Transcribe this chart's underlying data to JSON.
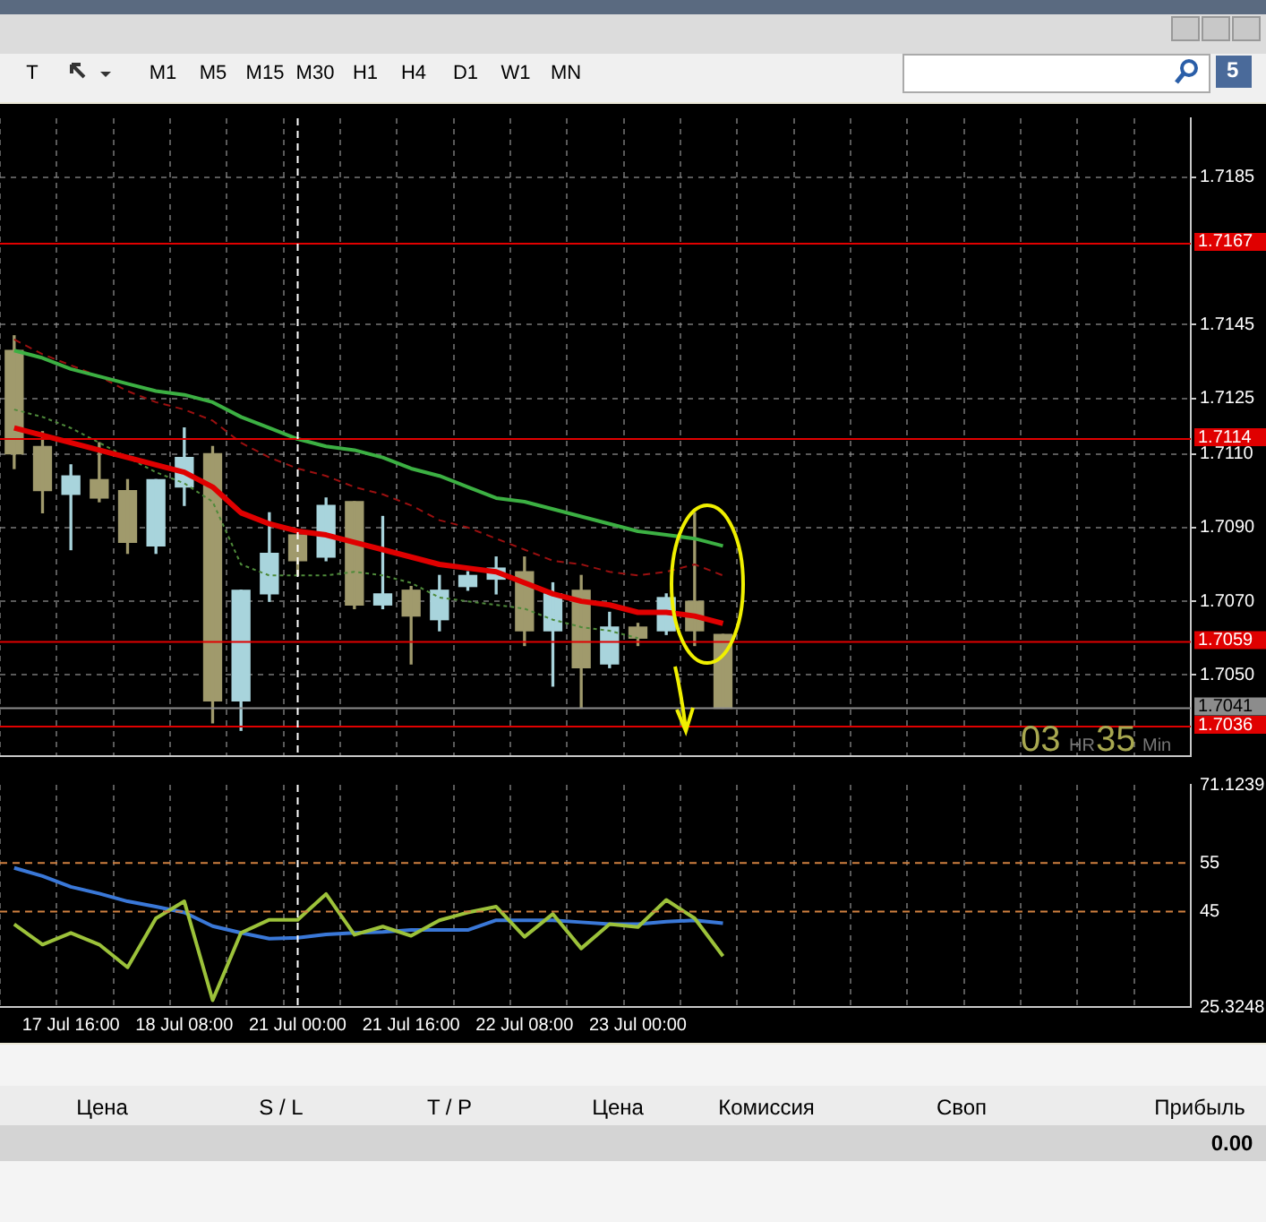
{
  "chart_data": [
    {
      "type": "candlestick",
      "categories": [
        null,
        null,
        "17 Jul 16:00",
        null,
        null,
        null,
        "18 Jul 08:00",
        null,
        null,
        null,
        "21 Jul 00:00",
        null,
        null,
        null,
        "21 Jul 16:00",
        null,
        null,
        null,
        "22 Jul 08:00",
        null,
        null,
        null,
        "23 Jul 00:00",
        null,
        null,
        null,
        null,
        null,
        null,
        null,
        null,
        null,
        null,
        null,
        null,
        null,
        null,
        null,
        null,
        null,
        null,
        null
      ],
      "ohlc": [
        [
          1.7138,
          1.7142,
          1.7106,
          1.711
        ],
        [
          1.7112,
          1.7116,
          1.7094,
          1.71
        ],
        [
          1.7099,
          1.7107,
          1.7084,
          1.7104
        ],
        [
          1.7103,
          1.7113,
          1.7097,
          1.7098
        ],
        [
          1.71,
          1.7103,
          1.7083,
          1.7086
        ],
        [
          1.7085,
          1.7103,
          1.7083,
          1.7103
        ],
        [
          1.7101,
          1.7117,
          1.7096,
          1.7109
        ],
        [
          1.711,
          1.7112,
          1.7037,
          1.7043
        ],
        [
          1.7043,
          1.7073,
          1.7035,
          1.7073
        ],
        [
          1.7072,
          1.7094,
          1.707,
          1.7083
        ],
        [
          1.7088,
          1.7088,
          1.7077,
          1.7081
        ],
        [
          1.7082,
          1.7098,
          1.7081,
          1.7096
        ],
        [
          1.7097,
          1.7097,
          1.7068,
          1.7069
        ],
        [
          1.7069,
          1.7093,
          1.7068,
          1.7072
        ],
        [
          1.7073,
          1.7074,
          1.7053,
          1.7066
        ],
        [
          1.7065,
          1.7077,
          1.7062,
          1.7073
        ],
        [
          1.7074,
          1.7078,
          1.7073,
          1.7077
        ],
        [
          1.7076,
          1.7082,
          1.7072,
          1.7079
        ],
        [
          1.7078,
          1.7082,
          1.7058,
          1.7062
        ],
        [
          1.7062,
          1.7075,
          1.7047,
          1.7072
        ],
        [
          1.7073,
          1.7077,
          1.7041,
          1.7052
        ],
        [
          1.7053,
          1.7067,
          1.7052,
          1.7063
        ],
        [
          1.7063,
          1.7064,
          1.7058,
          1.706
        ],
        [
          1.7062,
          1.7072,
          1.7061,
          1.7071
        ],
        [
          1.707,
          1.7094,
          1.7058,
          1.7062
        ],
        [
          1.7061,
          1.7061,
          1.7041,
          1.7041
        ],
        null,
        null,
        null,
        null,
        null,
        null,
        null,
        null,
        null,
        null,
        null,
        null,
        null,
        null,
        null,
        null
      ],
      "colors": [
        "#a09a6c",
        "#a09a6c",
        "#a8d4dc",
        "#a09a6c",
        "#a09a6c",
        "#a8d4dc",
        "#a8d4dc",
        "#a09a6c",
        "#a8d4dc",
        "#a8d4dc",
        "#a09a6c",
        "#a8d4dc",
        "#a09a6c",
        "#a8d4dc",
        "#a09a6c",
        "#a8d4dc",
        "#a8d4dc",
        "#a8d4dc",
        "#a09a6c",
        "#a8d4dc",
        "#a09a6c",
        "#a8d4dc",
        "#a09a6c",
        "#a8d4dc",
        "#a09a6c",
        "#a09a6c",
        null,
        null,
        null,
        null,
        null,
        null,
        null,
        null,
        null,
        null,
        null,
        null,
        null,
        null,
        null,
        null
      ],
      "series": [
        {
          "type": "line",
          "color": "#3cb043",
          "line_style": "solid",
          "values": [
            1.7138,
            1.7136,
            1.7133,
            1.7131,
            1.7129,
            1.7127,
            1.7126,
            1.7124,
            1.712,
            1.7117,
            1.7114,
            1.7112,
            1.7111,
            1.7109,
            1.7106,
            1.7104,
            1.7101,
            1.7098,
            1.7097,
            1.7095,
            1.7093,
            1.7091,
            1.7089,
            1.7088,
            1.7087,
            1.7085,
            null,
            null,
            null,
            null,
            null,
            null,
            null,
            null,
            null,
            null,
            null,
            null,
            null,
            null,
            null,
            null
          ]
        },
        {
          "type": "line",
          "color": "#e00000",
          "line_style": "solid",
          "values": [
            1.7117,
            1.7115,
            1.7113,
            1.7111,
            1.7109,
            1.7107,
            1.7105,
            1.7101,
            1.7094,
            1.7091,
            1.7089,
            1.7088,
            1.7086,
            1.7084,
            1.7082,
            1.708,
            1.7079,
            1.7078,
            1.7075,
            1.7072,
            1.707,
            1.7069,
            1.7067,
            1.7067,
            1.7066,
            1.7064,
            null,
            null,
            null,
            null,
            null,
            null,
            null,
            null,
            null,
            null,
            null,
            null,
            null,
            null,
            null,
            null
          ]
        },
        {
          "type": "line",
          "color": "#9a1010",
          "line_style": "dashed",
          "values": [
            1.7141,
            1.7137,
            1.7134,
            1.7131,
            1.7127,
            1.7124,
            1.7122,
            1.7119,
            1.7113,
            1.7109,
            1.7106,
            1.7104,
            1.7101,
            1.7099,
            1.7096,
            1.7092,
            1.709,
            1.7087,
            1.7084,
            1.7081,
            1.708,
            1.7078,
            1.7077,
            1.7078,
            1.708,
            1.7077,
            null,
            null,
            null,
            null,
            null,
            null,
            null,
            null,
            null,
            null,
            null,
            null,
            null,
            null,
            null,
            null
          ]
        },
        {
          "type": "line",
          "color": "#4e8a3a",
          "line_style": "dotted",
          "values": [
            1.7122,
            1.712,
            1.7117,
            1.7113,
            1.7109,
            1.7105,
            1.7102,
            1.7097,
            1.708,
            1.7077,
            1.7077,
            1.7077,
            1.7078,
            1.7077,
            1.7075,
            1.7071,
            1.707,
            1.7069,
            1.7068,
            1.7065,
            1.7063,
            1.7062,
            1.706,
            null,
            null,
            null,
            null,
            null,
            null,
            null,
            null,
            null,
            null,
            null,
            null,
            null,
            null,
            null,
            null,
            null,
            null,
            null
          ]
        }
      ],
      "ylim": [
        1.7028,
        1.7201
      ],
      "yticks": [
        1.7185,
        1.7145,
        1.7125,
        {
          "value": 1.711,
          "label": "1.7110"
        },
        {
          "value": 1.709,
          "label": "1.7090"
        },
        {
          "value": 1.707,
          "label": "1.7070"
        },
        {
          "value": 1.705,
          "label": "1.7050"
        }
      ],
      "ref_lines": [
        {
          "axis": "y",
          "value": 1.7167,
          "label": "1.7167",
          "color": "#e00000"
        },
        {
          "axis": "y",
          "value": 1.7114,
          "label": "1.7114",
          "color": "#e00000"
        },
        {
          "axis": "y",
          "value": 1.7059,
          "label": "1.7059",
          "color": "#e00000"
        },
        {
          "axis": "y",
          "value": 1.7036,
          "label": "1.7036",
          "color": "#e00000"
        },
        {
          "axis": "y",
          "value": 1.7041,
          "label": "1.7041",
          "color": "#8c8c8c"
        },
        {
          "axis": "x",
          "value": "21 Jul 00:00",
          "color": "#ffffff",
          "line_style": "dashed"
        }
      ],
      "grid": true,
      "tick_labels": "y",
      "marker": "none",
      "annotations": [
        "03",
        "HR",
        "35",
        "Min",
        "T",
        "M1",
        "M5",
        "M15",
        "M30",
        "H1",
        "H4",
        "D1",
        "W1",
        "MN",
        "5"
      ]
    },
    {
      "type": "line",
      "categories": [
        null,
        null,
        "17 Jul 16:00",
        null,
        null,
        null,
        "18 Jul 08:00",
        null,
        null,
        null,
        "21 Jul 00:00",
        null,
        null,
        null,
        "21 Jul 16:00",
        null,
        null,
        null,
        "22 Jul 08:00",
        null,
        null,
        null,
        "23 Jul 00:00",
        null,
        null,
        null,
        null,
        null,
        null,
        null,
        null,
        null,
        null,
        null,
        null,
        null,
        null,
        null,
        null,
        null,
        null,
        null
      ],
      "series": [
        {
          "color": "#9cc23a",
          "values": [
            42.4,
            38.2,
            40.6,
            38.2,
            33.5,
            43.6,
            47.1,
            26.7,
            40.6,
            43.3,
            43.3,
            48.6,
            40.2,
            41.9,
            40.0,
            43.2,
            44.8,
            46.0,
            39.8,
            44.5,
            37.4,
            42.4,
            41.8,
            47.4,
            43.6,
            35.8,
            null,
            null,
            null,
            null,
            null,
            null,
            null,
            null,
            null,
            null,
            null,
            null,
            null,
            null,
            null,
            null
          ]
        },
        {
          "color": "#3a78d8",
          "values": [
            54.0,
            52.3,
            50.1,
            48.7,
            47.1,
            46.0,
            44.8,
            42.0,
            40.6,
            39.4,
            39.6,
            40.3,
            40.6,
            40.8,
            41.2,
            41.2,
            41.2,
            43.2,
            43.2,
            43.2,
            42.8,
            42.4,
            42.4,
            42.9,
            43.2,
            42.6,
            null,
            null,
            null,
            null,
            null,
            null,
            null,
            null,
            null,
            null,
            null,
            null,
            null,
            null,
            null,
            null
          ]
        }
      ],
      "ylim": [
        25.3248,
        71.1239
      ],
      "yticks": [
        71.1239,
        55,
        45,
        25.3248
      ],
      "ref_lines": [
        {
          "axis": "y",
          "value": 55,
          "color": "#d08040",
          "line_style": "dashed"
        },
        {
          "axis": "y",
          "value": 45,
          "color": "#d08040",
          "line_style": "dashed"
        },
        {
          "axis": "x",
          "value": "21 Jul 00:00",
          "color": "#ffffff",
          "line_style": "dashed"
        }
      ],
      "grid": "x",
      "marker": "none",
      "line_style": "solid",
      "annotations": [
        "Цена",
        "S / L",
        "T / P",
        "Цена",
        "Комиссия",
        "Своп",
        "Прибыль",
        "0.00"
      ]
    }
  ]
}
